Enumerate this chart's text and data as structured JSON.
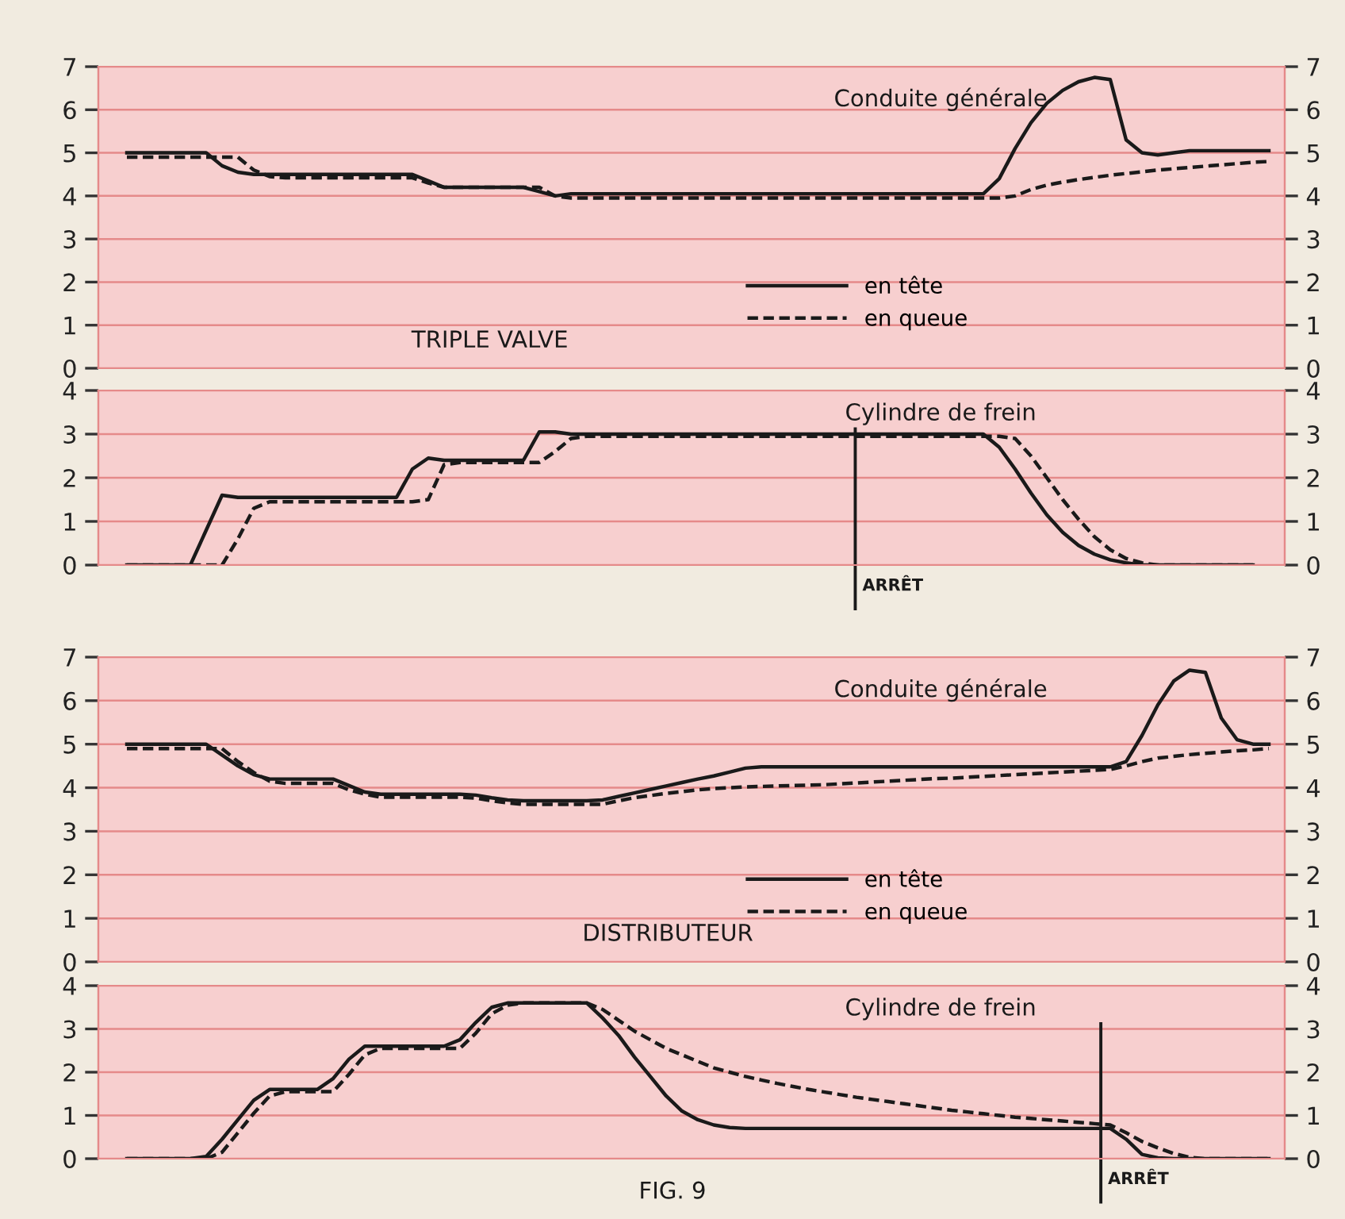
{
  "chart_data": [
    {
      "type": "line",
      "title": "Conduite générale",
      "annotations": [
        "TRIPLE VALVE"
      ],
      "categories": [
        null,
        null,
        null,
        null,
        null,
        null,
        null,
        null,
        null,
        null,
        null,
        null,
        null,
        null,
        null,
        null,
        null,
        null,
        null,
        null,
        null,
        null,
        null,
        null,
        null,
        null,
        null,
        null,
        null,
        null,
        null,
        null,
        null,
        null,
        null,
        null,
        null,
        null,
        null,
        null,
        null,
        null,
        null,
        null,
        null,
        null,
        null,
        null,
        null,
        null,
        null,
        null,
        null,
        null,
        null,
        null,
        null,
        null,
        null,
        null,
        null,
        null,
        null,
        null,
        null,
        null,
        null,
        null,
        null,
        null,
        null,
        null,
        null
      ],
      "series": [
        {
          "name": "en tête",
          "color": "#1a1a1a",
          "line_style": "solid",
          "values": [
            5.0,
            5.0,
            5.0,
            5.0,
            5.0,
            5.0,
            4.7,
            4.55,
            4.5,
            4.5,
            4.5,
            4.5,
            4.5,
            4.5,
            4.5,
            4.5,
            4.5,
            4.5,
            4.5,
            4.35,
            4.2,
            4.2,
            4.2,
            4.2,
            4.2,
            4.2,
            4.1,
            4.0,
            4.05,
            4.05,
            4.05,
            4.05,
            4.05,
            4.05,
            4.05,
            4.05,
            4.05,
            4.05,
            4.05,
            4.05,
            4.05,
            4.05,
            4.05,
            4.05,
            4.05,
            4.05,
            4.05,
            4.05,
            4.05,
            4.05,
            4.05,
            4.05,
            4.05,
            4.05,
            4.05,
            4.4,
            5.1,
            5.7,
            6.15,
            6.45,
            6.65,
            6.75,
            6.7,
            5.3,
            5.0,
            4.95,
            5.0,
            5.05,
            5.05,
            5.05,
            5.05,
            5.05,
            5.05
          ]
        },
        {
          "name": "en queue",
          "color": "#1a1a1a",
          "line_style": "dashed",
          "values": [
            4.9,
            4.9,
            4.9,
            4.9,
            4.9,
            4.9,
            4.9,
            4.9,
            4.6,
            4.45,
            4.42,
            4.42,
            4.42,
            4.42,
            4.42,
            4.42,
            4.42,
            4.42,
            4.42,
            4.3,
            4.2,
            4.2,
            4.2,
            4.2,
            4.2,
            4.2,
            4.2,
            4.0,
            3.95,
            3.95,
            3.95,
            3.95,
            3.95,
            3.95,
            3.95,
            3.95,
            3.95,
            3.95,
            3.95,
            3.95,
            3.95,
            3.95,
            3.95,
            3.95,
            3.95,
            3.95,
            3.95,
            3.95,
            3.95,
            3.95,
            3.95,
            3.95,
            3.95,
            3.95,
            3.95,
            3.95,
            4.0,
            4.15,
            4.25,
            4.32,
            4.38,
            4.43,
            4.48,
            4.52,
            4.56,
            4.6,
            4.63,
            4.66,
            4.69,
            4.72,
            4.75,
            4.78,
            4.8
          ]
        }
      ],
      "ylim": [
        0,
        7
      ],
      "yticks": [
        0,
        1,
        2,
        3,
        4,
        5,
        6,
        7
      ],
      "y2lim": [
        0,
        7
      ],
      "y2ticks": [
        0,
        1,
        2,
        3,
        4,
        5,
        6,
        7
      ],
      "grid": "y",
      "legend": "bottom"
    },
    {
      "type": "line",
      "title": "Cylindre de frein",
      "categories": [
        null,
        null,
        null,
        null,
        null,
        null,
        null,
        null,
        null,
        null,
        null,
        null,
        null,
        null,
        null,
        null,
        null,
        null,
        null,
        null,
        null,
        null,
        null,
        null,
        null,
        null,
        null,
        null,
        null,
        null,
        null,
        null,
        null,
        null,
        null,
        null,
        null,
        null,
        null,
        null,
        null,
        null,
        null,
        null,
        null,
        null,
        null,
        null,
        null,
        null,
        null,
        null,
        null,
        null,
        null,
        null,
        null,
        null,
        null,
        null,
        null,
        null,
        null,
        null,
        null,
        null,
        null,
        null,
        null,
        null,
        null,
        null,
        null
      ],
      "series": [
        {
          "color": "#1a1a1a",
          "line_style": "solid",
          "values": [
            0,
            0,
            0,
            0,
            0,
            0.8,
            1.6,
            1.55,
            1.55,
            1.55,
            1.55,
            1.55,
            1.55,
            1.55,
            1.55,
            1.55,
            1.55,
            1.55,
            2.2,
            2.45,
            2.4,
            2.4,
            2.4,
            2.4,
            2.4,
            2.4,
            3.05,
            3.05,
            3.0,
            3.0,
            3.0,
            3.0,
            3.0,
            3.0,
            3.0,
            3.0,
            3.0,
            3.0,
            3.0,
            3.0,
            3.0,
            3.0,
            3.0,
            3.0,
            3.0,
            3.0,
            3.0,
            3.0,
            3.0,
            3.0,
            3.0,
            3.0,
            3.0,
            3.0,
            3.0,
            2.7,
            2.2,
            1.65,
            1.15,
            0.75,
            0.45,
            0.25,
            0.12,
            0.05,
            0,
            0,
            0,
            0,
            0,
            0,
            0,
            0,
            null
          ]
        },
        {
          "color": "#1a1a1a",
          "line_style": "dashed",
          "values": [
            0,
            0,
            0,
            0,
            0,
            0,
            0,
            0.6,
            1.3,
            1.45,
            1.45,
            1.45,
            1.45,
            1.45,
            1.45,
            1.45,
            1.45,
            1.45,
            1.45,
            1.5,
            2.3,
            2.35,
            2.35,
            2.35,
            2.35,
            2.35,
            2.35,
            2.6,
            2.9,
            2.95,
            2.95,
            2.95,
            2.95,
            2.95,
            2.95,
            2.95,
            2.95,
            2.95,
            2.95,
            2.95,
            2.95,
            2.95,
            2.95,
            2.95,
            2.95,
            2.95,
            2.95,
            2.95,
            2.95,
            2.95,
            2.95,
            2.95,
            2.95,
            2.95,
            2.95,
            2.95,
            2.9,
            2.5,
            2.0,
            1.5,
            1.05,
            0.65,
            0.35,
            0.15,
            0.05,
            0,
            0,
            0,
            0,
            0,
            0,
            0,
            null
          ]
        }
      ],
      "ylim": [
        0,
        4
      ],
      "yticks": [
        0,
        1,
        2,
        3,
        4
      ],
      "y2lim": [
        0,
        4
      ],
      "y2ticks": [
        0,
        1,
        2,
        3,
        4
      ],
      "grid": "y",
      "annotations": [
        "ARRÊT"
      ]
    },
    {
      "type": "line",
      "title": "Conduite générale",
      "annotations": [
        "DISTRIBUTEUR"
      ],
      "categories": [
        null,
        null,
        null,
        null,
        null,
        null,
        null,
        null,
        null,
        null,
        null,
        null,
        null,
        null,
        null,
        null,
        null,
        null,
        null,
        null,
        null,
        null,
        null,
        null,
        null,
        null,
        null,
        null,
        null,
        null,
        null,
        null,
        null,
        null,
        null,
        null,
        null,
        null,
        null,
        null,
        null,
        null,
        null,
        null,
        null,
        null,
        null,
        null,
        null,
        null,
        null,
        null,
        null,
        null,
        null,
        null,
        null,
        null,
        null,
        null,
        null,
        null,
        null,
        null,
        null,
        null,
        null,
        null,
        null,
        null,
        null,
        null,
        null
      ],
      "series": [
        {
          "name": "en tête",
          "color": "#1a1a1a",
          "line_style": "solid",
          "values": [
            5.0,
            5.0,
            5.0,
            5.0,
            5.0,
            5.0,
            4.75,
            4.5,
            4.3,
            4.2,
            4.2,
            4.2,
            4.2,
            4.2,
            4.05,
            3.9,
            3.85,
            3.85,
            3.85,
            3.85,
            3.85,
            3.85,
            3.83,
            3.77,
            3.72,
            3.7,
            3.7,
            3.7,
            3.7,
            3.7,
            3.72,
            3.8,
            3.88,
            3.96,
            4.04,
            4.12,
            4.2,
            4.27,
            4.36,
            4.45,
            4.48,
            4.48,
            4.48,
            4.48,
            4.48,
            4.48,
            4.48,
            4.48,
            4.48,
            4.48,
            4.48,
            4.48,
            4.48,
            4.48,
            4.48,
            4.48,
            4.48,
            4.48,
            4.48,
            4.48,
            4.48,
            4.48,
            4.48,
            4.6,
            5.2,
            5.9,
            6.45,
            6.7,
            6.65,
            5.6,
            5.1,
            5.0,
            5.0
          ]
        },
        {
          "name": "en queue",
          "color": "#1a1a1a",
          "line_style": "dashed",
          "values": [
            4.9,
            4.9,
            4.9,
            4.9,
            4.9,
            4.9,
            4.9,
            4.6,
            4.35,
            4.15,
            4.1,
            4.1,
            4.1,
            4.1,
            3.95,
            3.85,
            3.78,
            3.78,
            3.78,
            3.78,
            3.78,
            3.78,
            3.76,
            3.7,
            3.65,
            3.62,
            3.62,
            3.62,
            3.62,
            3.62,
            3.62,
            3.7,
            3.77,
            3.82,
            3.87,
            3.91,
            3.95,
            3.98,
            4.0,
            4.02,
            4.03,
            4.04,
            4.05,
            4.06,
            4.07,
            4.09,
            4.11,
            4.13,
            4.15,
            4.17,
            4.19,
            4.21,
            4.22,
            4.24,
            4.26,
            4.28,
            4.3,
            4.32,
            4.34,
            4.36,
            4.38,
            4.4,
            4.42,
            4.5,
            4.6,
            4.68,
            4.72,
            4.76,
            4.79,
            4.82,
            4.85,
            4.87,
            4.9
          ]
        }
      ],
      "ylim": [
        0,
        7
      ],
      "yticks": [
        0,
        1,
        2,
        3,
        4,
        5,
        6,
        7
      ],
      "y2lim": [
        0,
        7
      ],
      "y2ticks": [
        0,
        1,
        2,
        3,
        4,
        5,
        6,
        7
      ],
      "grid": "y",
      "legend": "bottom"
    },
    {
      "type": "line",
      "title": "Cylindre de frein",
      "annotations": [
        "ARRÊT",
        "FIG. 9"
      ],
      "categories": [
        null,
        null,
        null,
        null,
        null,
        null,
        null,
        null,
        null,
        null,
        null,
        null,
        null,
        null,
        null,
        null,
        null,
        null,
        null,
        null,
        null,
        null,
        null,
        null,
        null,
        null,
        null,
        null,
        null,
        null,
        null,
        null,
        null,
        null,
        null,
        null,
        null,
        null,
        null,
        null,
        null,
        null,
        null,
        null,
        null,
        null,
        null,
        null,
        null,
        null,
        null,
        null,
        null,
        null,
        null,
        null,
        null,
        null,
        null,
        null,
        null,
        null,
        null,
        null,
        null,
        null,
        null,
        null,
        null,
        null,
        null,
        null,
        null
      ],
      "series": [
        {
          "color": "#1a1a1a",
          "line_style": "solid",
          "values": [
            0,
            0,
            0,
            0,
            0,
            0.05,
            0.45,
            0.9,
            1.35,
            1.6,
            1.6,
            1.6,
            1.6,
            1.85,
            2.3,
            2.6,
            2.6,
            2.6,
            2.6,
            2.6,
            2.6,
            2.75,
            3.15,
            3.5,
            3.6,
            3.6,
            3.6,
            3.6,
            3.6,
            3.6,
            3.25,
            2.85,
            2.35,
            1.9,
            1.45,
            1.1,
            0.9,
            0.78,
            0.72,
            0.7,
            0.7,
            0.7,
            0.7,
            0.7,
            0.7,
            0.7,
            0.7,
            0.7,
            0.7,
            0.7,
            0.7,
            0.7,
            0.7,
            0.7,
            0.7,
            0.7,
            0.7,
            0.7,
            0.7,
            0.7,
            0.7,
            0.7,
            0.7,
            0.45,
            0.1,
            0.02,
            0,
            0,
            0,
            0,
            0,
            0,
            0
          ]
        },
        {
          "color": "#1a1a1a",
          "line_style": "dashed",
          "values": [
            0,
            0,
            0,
            0,
            0,
            0,
            0.15,
            0.6,
            1.05,
            1.45,
            1.55,
            1.55,
            1.55,
            1.55,
            1.95,
            2.4,
            2.55,
            2.55,
            2.55,
            2.55,
            2.55,
            2.55,
            2.9,
            3.35,
            3.55,
            3.6,
            3.6,
            3.6,
            3.6,
            3.6,
            3.45,
            3.2,
            2.95,
            2.75,
            2.55,
            2.4,
            2.25,
            2.1,
            2.0,
            1.9,
            1.82,
            1.74,
            1.67,
            1.6,
            1.54,
            1.48,
            1.42,
            1.37,
            1.32,
            1.27,
            1.22,
            1.17,
            1.12,
            1.08,
            1.04,
            1.0,
            0.96,
            0.93,
            0.9,
            0.87,
            0.84,
            0.81,
            0.78,
            0.6,
            0.4,
            0.25,
            0.12,
            0.03,
            0,
            0,
            0,
            0,
            0
          ]
        }
      ],
      "ylim": [
        0,
        4
      ],
      "yticks": [
        0,
        1,
        2,
        3,
        4
      ],
      "y2lim": [
        0,
        4
      ],
      "y2ticks": [
        0,
        1,
        2,
        3,
        4
      ],
      "grid": "y"
    }
  ]
}
